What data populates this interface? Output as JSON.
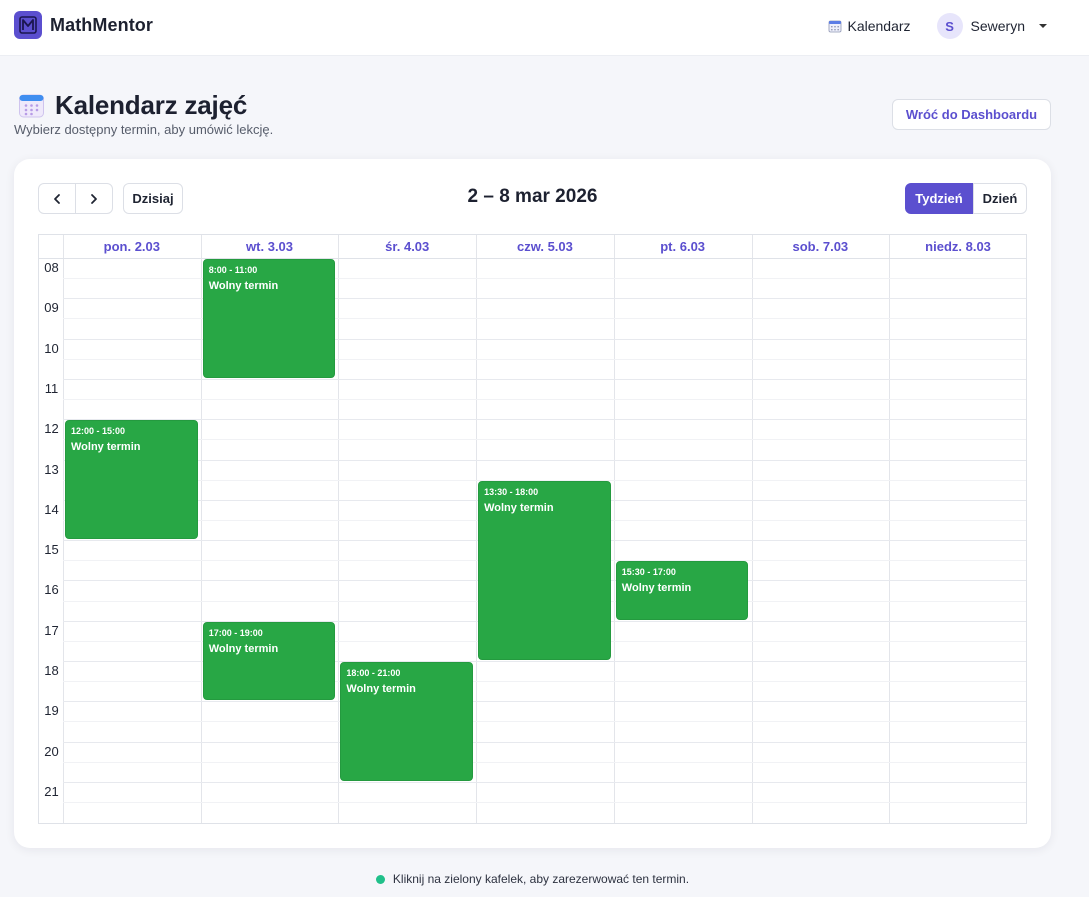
{
  "app": {
    "name": "MathMentor"
  },
  "nav": {
    "calendar_label": "Kalendarz",
    "user": {
      "initial": "S",
      "name": "Seweryn"
    }
  },
  "page": {
    "title": "Kalendarz zajęć",
    "subtitle": "Wybierz dostępny termin, aby umówić lekcję.",
    "back_label": "Wróć do Dashboardu"
  },
  "calendar": {
    "today_label": "Dzisiaj",
    "range_title": "2 – 8 mar 2026",
    "views": [
      "Tydzień",
      "Dzień"
    ],
    "active_view": "Tydzień",
    "days": [
      "pon. 2.03",
      "wt. 3.03",
      "śr. 4.03",
      "czw. 5.03",
      "pt. 6.03",
      "sob. 7.03",
      "niedz. 8.03"
    ],
    "hours": [
      "08",
      "09",
      "10",
      "11",
      "12",
      "13",
      "14",
      "15",
      "16",
      "17",
      "18",
      "19",
      "20",
      "21"
    ],
    "events": [
      {
        "day": 1,
        "start": 8.0,
        "end": 11.0,
        "time": "8:00 - 11:00",
        "title": "Wolny termin"
      },
      {
        "day": 0,
        "start": 12.0,
        "end": 15.0,
        "time": "12:00 - 15:00",
        "title": "Wolny termin"
      },
      {
        "day": 3,
        "start": 13.5,
        "end": 18.0,
        "time": "13:30 - 18:00",
        "title": "Wolny termin"
      },
      {
        "day": 4,
        "start": 15.5,
        "end": 17.0,
        "time": "15:30 - 17:00",
        "title": "Wolny termin"
      },
      {
        "day": 1,
        "start": 17.0,
        "end": 19.0,
        "time": "17:00 - 19:00",
        "title": "Wolny termin"
      },
      {
        "day": 2,
        "start": 18.0,
        "end": 21.0,
        "time": "18:00 - 21:00",
        "title": "Wolny termin"
      }
    ],
    "event_color": "#28a745",
    "accent_color": "#5b4fcf"
  },
  "footer": {
    "hint": "Kliknij na zielony kafelek, aby zarezerwować ten termin."
  }
}
